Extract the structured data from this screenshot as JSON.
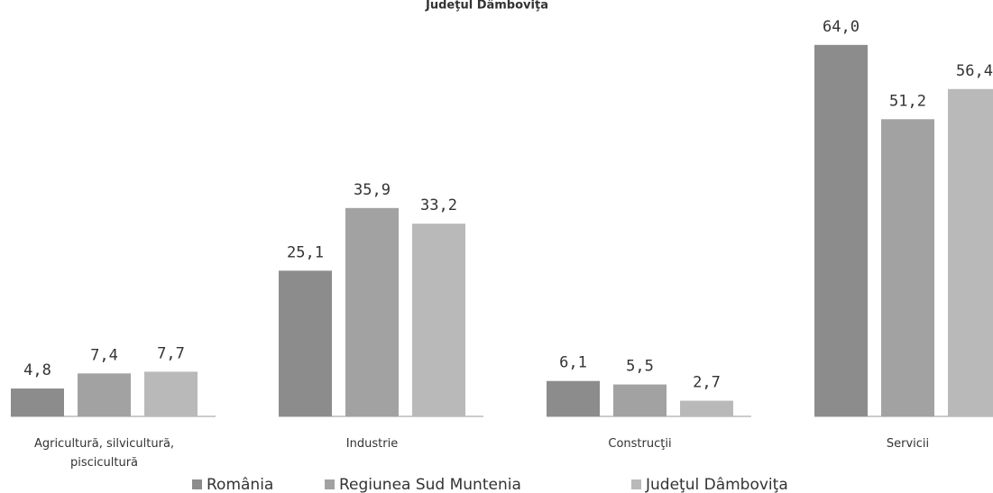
{
  "chart_data": {
    "type": "bar",
    "title": "Judeţul Dâmboviţa",
    "categories": [
      "Agricultură, silvicultură, piscicultură",
      "Industrie",
      "Construcţii",
      "Servicii"
    ],
    "series": [
      {
        "name": "România",
        "color": "#8c8c8c",
        "values": [
          4.8,
          25.1,
          6.1,
          64.0
        ],
        "value_labels": [
          "4,8",
          "25,1",
          "6,1",
          "64,0"
        ]
      },
      {
        "name": "Regiunea Sud Muntenia",
        "color": "#a2a2a2",
        "values": [
          7.4,
          35.9,
          5.5,
          51.2
        ],
        "value_labels": [
          "7,4",
          "35,9",
          "5,5",
          "51,2"
        ]
      },
      {
        "name": "Judeţul Dâmboviţa",
        "color": "#b9b9b9",
        "values": [
          7.7,
          33.2,
          2.7,
          56.4
        ],
        "value_labels": [
          "7,7",
          "33,2",
          "2,7",
          "56,4"
        ]
      }
    ]
  }
}
